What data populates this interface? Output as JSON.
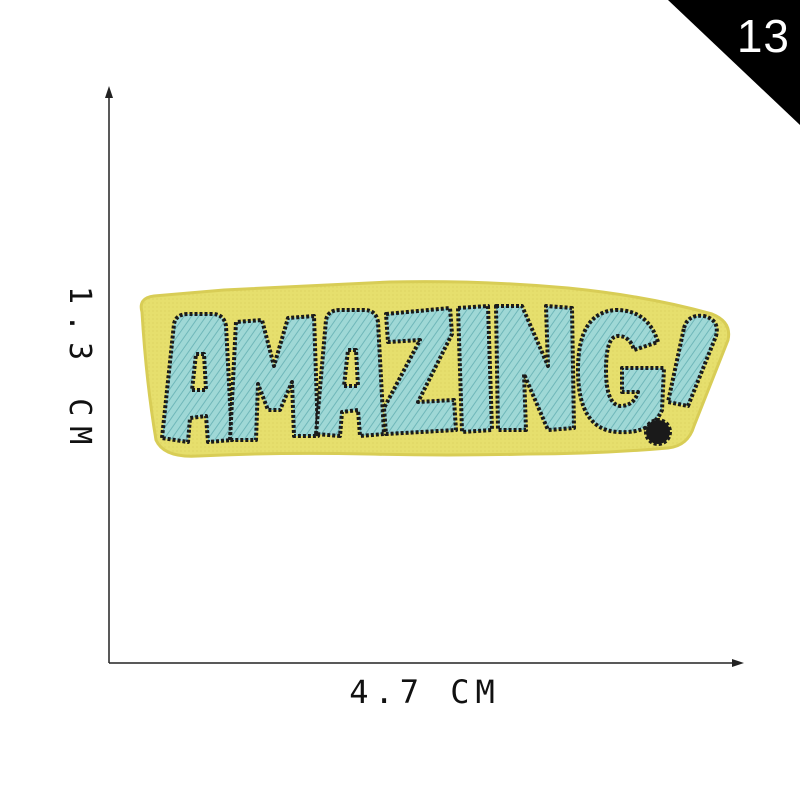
{
  "badge": {
    "number": "13",
    "background_color": "#000000",
    "text_color": "#ffffff"
  },
  "dimensions": {
    "height_label": "1.3 CM",
    "width_label": "4.7 CM"
  },
  "patch": {
    "text": "AMAZING!",
    "backing_color": "#e6df6d",
    "thread_color": "#8fd0d0",
    "outline_color": "#1a1a1a"
  }
}
